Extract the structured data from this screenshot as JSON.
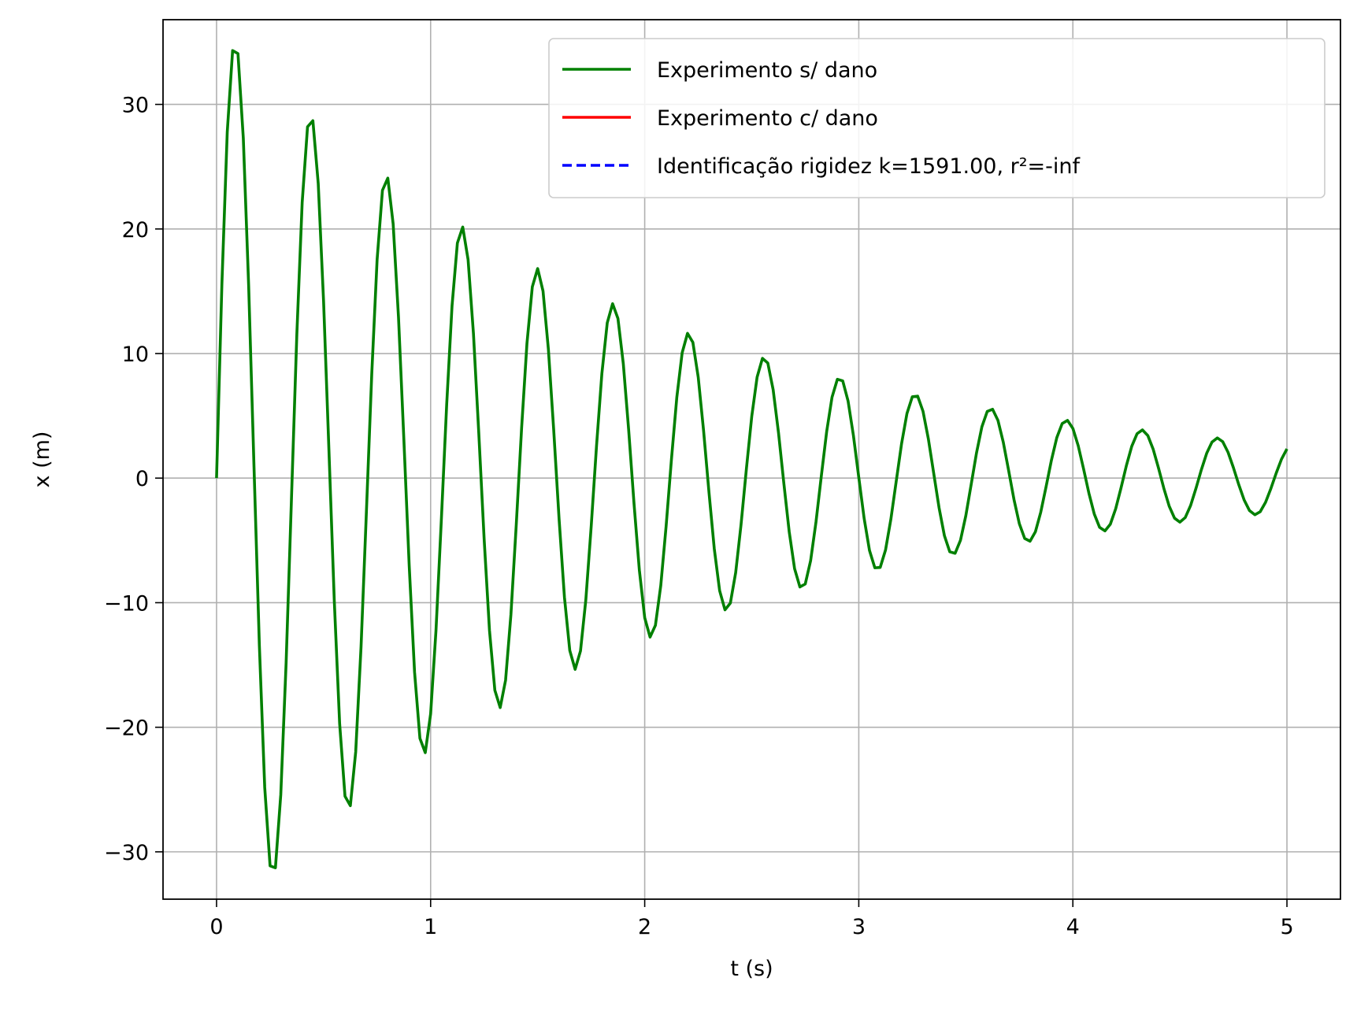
{
  "chart_data": {
    "type": "line",
    "title": "",
    "xlabel": "t (s)",
    "ylabel": "x (m)",
    "xlim": [
      -0.25,
      5.25
    ],
    "ylim": [
      -33.8,
      36.8
    ],
    "grid": true,
    "legend_position": "top-right",
    "x_ticks": [
      0,
      1,
      2,
      3,
      4,
      5
    ],
    "x_tick_labels": [
      "0",
      "1",
      "2",
      "3",
      "4",
      "5"
    ],
    "y_ticks": [
      -30,
      -20,
      -10,
      0,
      10,
      20,
      30
    ],
    "y_tick_labels": [
      "−30",
      "−20",
      "−10",
      "0",
      "10",
      "20",
      "30"
    ],
    "series": [
      {
        "name": "Experimento s/ dano",
        "color": "#008000",
        "style": "solid",
        "generator": {
          "form": "damped_sine",
          "amplitude": 36.7,
          "decay_rate": 0.52,
          "angular_frequency": 17.8,
          "t_start": 0,
          "t_end": 5,
          "samples": 201
        }
      },
      {
        "name": "Experimento c/ dano",
        "color": "#ff0000",
        "style": "solid",
        "values": []
      },
      {
        "name": "Identificação rigidez k=1591.00, r²=-inf",
        "color": "#0000ff",
        "style": "dashed",
        "values": []
      }
    ]
  }
}
